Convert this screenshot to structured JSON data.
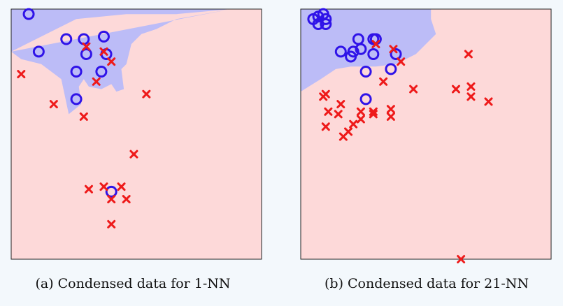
{
  "colors": {
    "class_circle": "#2f13e8",
    "class_cross": "#ee1a1a",
    "region_circle": "#bcbcf7",
    "region_cross": "#fdd9d9"
  },
  "chart_data": [
    {
      "type": "scatter",
      "caption": "(a) Condensed data for 1-NN",
      "xlim": [
        0,
        1
      ],
      "ylim": [
        0,
        1
      ],
      "grid": false,
      "series": [
        {
          "marker": "circle",
          "color": "#2f13e8",
          "points": [
            [
              0.07,
              0.98
            ],
            [
              0.11,
              0.83
            ],
            [
              0.22,
              0.88
            ],
            [
              0.29,
              0.88
            ],
            [
              0.37,
              0.89
            ],
            [
              0.3,
              0.82
            ],
            [
              0.38,
              0.82
            ],
            [
              0.26,
              0.75
            ],
            [
              0.36,
              0.75
            ],
            [
              0.26,
              0.64
            ],
            [
              0.4,
              0.27
            ]
          ]
        },
        {
          "marker": "cross",
          "color": "#ee1a1a",
          "points": [
            [
              0.3,
              0.85
            ],
            [
              0.37,
              0.83
            ],
            [
              0.4,
              0.79
            ],
            [
              0.04,
              0.74
            ],
            [
              0.34,
              0.71
            ],
            [
              0.17,
              0.62
            ],
            [
              0.29,
              0.57
            ],
            [
              0.54,
              0.66
            ],
            [
              0.49,
              0.42
            ],
            [
              0.31,
              0.28
            ],
            [
              0.37,
              0.29
            ],
            [
              0.44,
              0.29
            ],
            [
              0.4,
              0.24
            ],
            [
              0.46,
              0.24
            ],
            [
              0.4,
              0.14
            ]
          ]
        }
      ],
      "decision_region": {
        "class": "circle",
        "polygon": [
          [
            0,
            0.83
          ],
          [
            0.14,
            0.9
          ],
          [
            0.26,
            0.96
          ],
          [
            0.46,
            0.98
          ],
          [
            0.66,
            0.98
          ],
          [
            0.88,
            1
          ],
          [
            0,
            1
          ],
          [
            0,
            0.83
          ],
          [
            0.04,
            0.8
          ],
          [
            0.12,
            0.78
          ],
          [
            0.2,
            0.72
          ],
          [
            0.23,
            0.58
          ],
          [
            0.28,
            0.62
          ],
          [
            0.27,
            0.69
          ],
          [
            0.29,
            0.72
          ],
          [
            0.31,
            0.69
          ],
          [
            0.36,
            0.68
          ],
          [
            0.4,
            0.7
          ],
          [
            0.42,
            0.67
          ],
          [
            0.45,
            0.68
          ],
          [
            0.44,
            0.76
          ],
          [
            0.46,
            0.78
          ],
          [
            0.48,
            0.86
          ],
          [
            0.52,
            0.9
          ],
          [
            0.58,
            0.92
          ],
          [
            0.66,
            0.96
          ],
          [
            0.88,
            1
          ]
        ]
      }
    },
    {
      "type": "scatter",
      "caption": "(b) Condensed data for 21-NN",
      "xlim": [
        0,
        1
      ],
      "ylim": [
        0,
        1
      ],
      "grid": false,
      "series": [
        {
          "marker": "circle",
          "color": "#2f13e8",
          "points": [
            [
              0.05,
              0.96
            ],
            [
              0.07,
              0.97
            ],
            [
              0.09,
              0.98
            ],
            [
              0.1,
              0.96
            ],
            [
              0.07,
              0.94
            ],
            [
              0.1,
              0.94
            ],
            [
              0.23,
              0.88
            ],
            [
              0.29,
              0.88
            ],
            [
              0.3,
              0.88
            ],
            [
              0.16,
              0.83
            ],
            [
              0.21,
              0.83
            ],
            [
              0.24,
              0.84
            ],
            [
              0.29,
              0.82
            ],
            [
              0.38,
              0.82
            ],
            [
              0.2,
              0.81
            ],
            [
              0.26,
              0.75
            ],
            [
              0.36,
              0.76
            ],
            [
              0.26,
              0.64
            ]
          ]
        },
        {
          "marker": "cross",
          "color": "#ee1a1a",
          "points": [
            [
              0.3,
              0.86
            ],
            [
              0.37,
              0.84
            ],
            [
              0.4,
              0.79
            ],
            [
              0.33,
              0.71
            ],
            [
              0.45,
              0.68
            ],
            [
              0.09,
              0.65
            ],
            [
              0.1,
              0.66
            ],
            [
              0.16,
              0.62
            ],
            [
              0.11,
              0.59
            ],
            [
              0.15,
              0.58
            ],
            [
              0.24,
              0.59
            ],
            [
              0.29,
              0.59
            ],
            [
              0.36,
              0.6
            ],
            [
              0.24,
              0.56
            ],
            [
              0.29,
              0.58
            ],
            [
              0.36,
              0.57
            ],
            [
              0.21,
              0.54
            ],
            [
              0.1,
              0.53
            ],
            [
              0.19,
              0.51
            ],
            [
              0.17,
              0.49
            ],
            [
              0.67,
              0.82
            ],
            [
              0.62,
              0.68
            ],
            [
              0.68,
              0.69
            ],
            [
              0.68,
              0.65
            ],
            [
              0.75,
              0.63
            ],
            [
              0.64,
              0
            ]
          ]
        }
      ],
      "decision_region": {
        "class": "circle",
        "polygon": [
          [
            0,
            0.67
          ],
          [
            0.08,
            0.72
          ],
          [
            0.14,
            0.76
          ],
          [
            0.2,
            0.77
          ],
          [
            0.3,
            0.77
          ],
          [
            0.38,
            0.78
          ],
          [
            0.46,
            0.82
          ],
          [
            0.54,
            0.9
          ],
          [
            0.52,
            0.96
          ],
          [
            0.52,
            1
          ],
          [
            0,
            1
          ]
        ]
      }
    }
  ]
}
